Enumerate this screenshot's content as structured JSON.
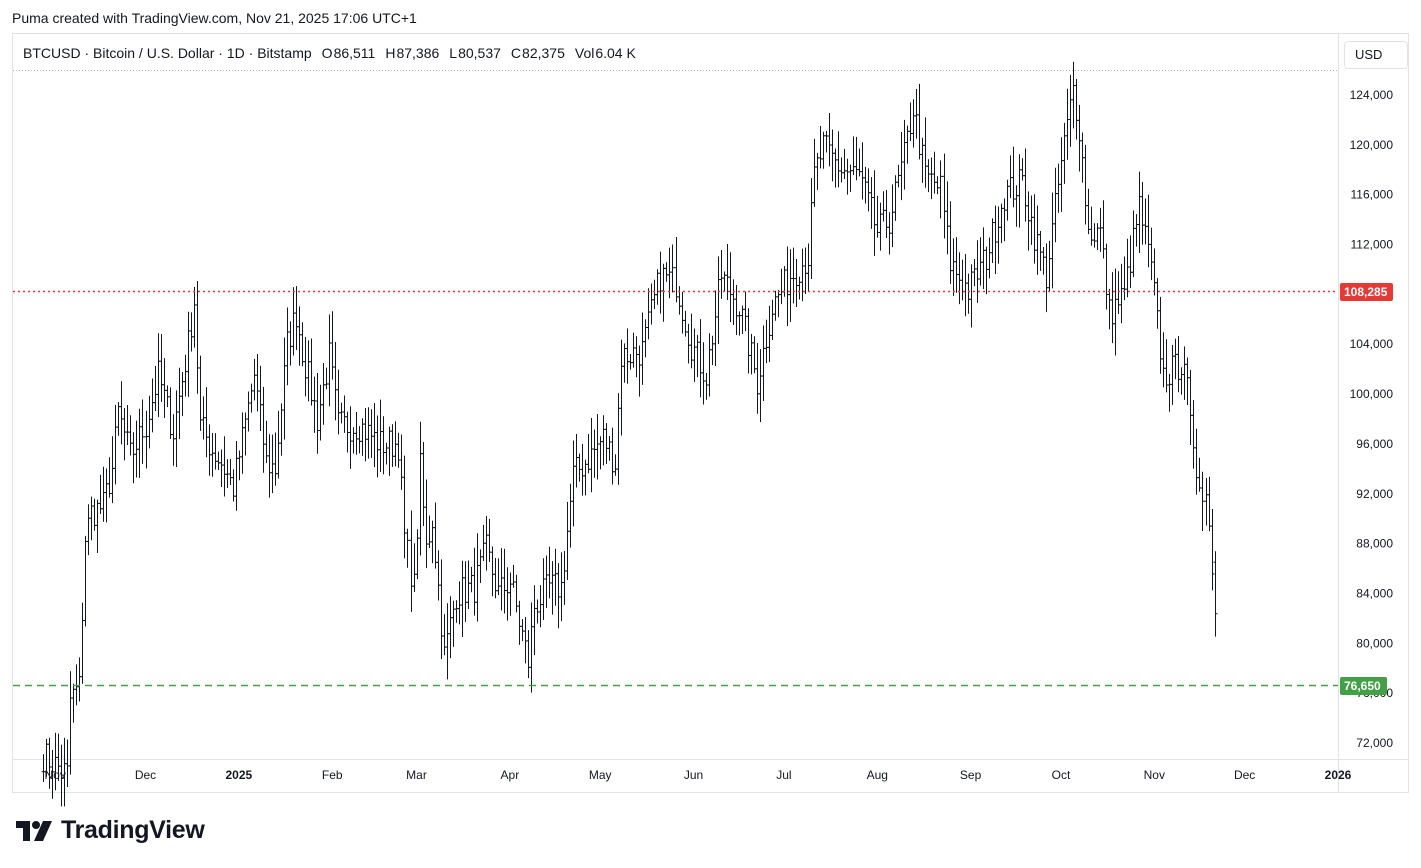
{
  "caption": "Puma created with TradingView.com, Nov 21, 2025 17:06 UTC+1",
  "legend": {
    "symbol": "BTCUSD",
    "name": "Bitcoin / U.S. Dollar",
    "interval": "1D",
    "exchange": "Bitstamp",
    "open_label": "O",
    "open": "86,511",
    "high_label": "H",
    "high": "87,386",
    "low_label": "L",
    "low": "80,537",
    "close_label": "C",
    "close": "82,375",
    "vol_label": "Vol",
    "vol": "6.04 K"
  },
  "currency_button": "USD",
  "logo_text": "TradingView",
  "colors": {
    "bars": "#131722",
    "resistance": "#e53935",
    "support": "#43a047",
    "axis_text": "#131722",
    "grid_border": "#e0e3eb"
  },
  "chart_data": {
    "type": "ohlc",
    "title": "",
    "symbol": "BTCUSD",
    "timeframe": "1D",
    "ylim": [
      70800,
      126000
    ],
    "y_ticks": [
      72000,
      76000,
      80000,
      84000,
      88000,
      92000,
      96000,
      100000,
      104000,
      108000,
      112000,
      116000,
      120000,
      124000
    ],
    "y_tick_labels": [
      "72,000",
      "76,000",
      "80,000",
      "84,000",
      "88,000",
      "92,000",
      "96,000",
      "100,000",
      "104,000",
      "108,000",
      "112,000",
      "116,000",
      "120,000",
      "124,000"
    ],
    "x_range": [
      "2024-10-18",
      "2026-01-01"
    ],
    "x_ticks": [
      {
        "date": "2024-11-01",
        "label": "Nov",
        "bold": false
      },
      {
        "date": "2024-12-01",
        "label": "Dec",
        "bold": false
      },
      {
        "date": "2025-01-01",
        "label": "2025",
        "bold": true
      },
      {
        "date": "2025-02-01",
        "label": "Feb",
        "bold": false
      },
      {
        "date": "2025-03-01",
        "label": "Mar",
        "bold": false
      },
      {
        "date": "2025-04-01",
        "label": "Apr",
        "bold": false
      },
      {
        "date": "2025-05-01",
        "label": "May",
        "bold": false
      },
      {
        "date": "2025-06-01",
        "label": "Jun",
        "bold": false
      },
      {
        "date": "2025-07-01",
        "label": "Jul",
        "bold": false
      },
      {
        "date": "2025-08-01",
        "label": "Aug",
        "bold": false
      },
      {
        "date": "2025-09-01",
        "label": "Sep",
        "bold": false
      },
      {
        "date": "2025-10-01",
        "label": "Oct",
        "bold": false
      },
      {
        "date": "2025-11-01",
        "label": "Nov",
        "bold": false
      },
      {
        "date": "2025-12-01",
        "label": "Dec",
        "bold": false
      },
      {
        "date": "2026-01-01",
        "label": "2026",
        "bold": true
      }
    ],
    "closes_approx": {
      "start_date": "2024-10-28",
      "end_date": "2025-11-21",
      "anchors": [
        [
          "2024-10-28",
          71000
        ],
        [
          "2024-11-05",
          69500
        ],
        [
          "2024-11-06",
          75500
        ],
        [
          "2024-11-09",
          76500
        ],
        [
          "2024-11-11",
          88500
        ],
        [
          "2024-11-13",
          90500
        ],
        [
          "2024-11-17",
          91000
        ],
        [
          "2024-11-20",
          94000
        ],
        [
          "2024-11-22",
          98500
        ],
        [
          "2024-11-26",
          95000
        ],
        [
          "2024-12-01",
          97500
        ],
        [
          "2024-12-05",
          101500
        ],
        [
          "2024-12-10",
          97000
        ],
        [
          "2024-12-15",
          104000
        ],
        [
          "2024-12-17",
          107500
        ],
        [
          "2024-12-19",
          97500
        ],
        [
          "2024-12-23",
          95500
        ],
        [
          "2024-12-26",
          94500
        ],
        [
          "2024-12-30",
          92500
        ],
        [
          "2025-01-06",
          101500
        ],
        [
          "2025-01-10",
          94500
        ],
        [
          "2025-01-13",
          94000
        ],
        [
          "2025-01-17",
          104000
        ],
        [
          "2025-01-20",
          106500
        ],
        [
          "2025-01-22",
          103500
        ],
        [
          "2025-01-27",
          98000
        ],
        [
          "2025-01-31",
          103000
        ],
        [
          "2025-02-03",
          97500
        ],
        [
          "2025-02-10",
          97500
        ],
        [
          "2025-02-17",
          96000
        ],
        [
          "2025-02-23",
          96000
        ],
        [
          "2025-02-25",
          88500
        ],
        [
          "2025-02-28",
          84500
        ],
        [
          "2025-03-02",
          94000
        ],
        [
          "2025-03-04",
          87500
        ],
        [
          "2025-03-06",
          90000
        ],
        [
          "2025-03-10",
          79000
        ],
        [
          "2025-03-14",
          84000
        ],
        [
          "2025-03-20",
          84500
        ],
        [
          "2025-03-24",
          87500
        ],
        [
          "2025-03-28",
          84000
        ],
        [
          "2025-04-01",
          85000
        ],
        [
          "2025-04-07",
          78500
        ],
        [
          "2025-04-09",
          83000
        ],
        [
          "2025-04-14",
          84500
        ],
        [
          "2025-04-18",
          84500
        ],
        [
          "2025-04-22",
          93500
        ],
        [
          "2025-04-26",
          94500
        ],
        [
          "2025-05-02",
          96500
        ],
        [
          "2025-05-06",
          94500
        ],
        [
          "2025-05-08",
          103000
        ],
        [
          "2025-05-15",
          103500
        ],
        [
          "2025-05-21",
          109500
        ],
        [
          "2025-05-26",
          109000
        ],
        [
          "2025-05-31",
          104000
        ],
        [
          "2025-06-05",
          101500
        ],
        [
          "2025-06-10",
          109500
        ],
        [
          "2025-06-16",
          107000
        ],
        [
          "2025-06-22",
          101000
        ],
        [
          "2025-06-27",
          107000
        ],
        [
          "2025-07-03",
          109500
        ],
        [
          "2025-07-09",
          111000
        ],
        [
          "2025-07-11",
          117500
        ],
        [
          "2025-07-14",
          119800
        ],
        [
          "2025-07-20",
          118000
        ],
        [
          "2025-07-26",
          117500
        ],
        [
          "2025-08-01",
          113000
        ],
        [
          "2025-08-05",
          114000
        ],
        [
          "2025-08-10",
          119000
        ],
        [
          "2025-08-13",
          123000
        ],
        [
          "2025-08-17",
          117500
        ],
        [
          "2025-08-22",
          116500
        ],
        [
          "2025-08-25",
          110500
        ],
        [
          "2025-08-31",
          108300
        ],
        [
          "2025-09-06",
          111000
        ],
        [
          "2025-09-12",
          116000
        ],
        [
          "2025-09-18",
          117000
        ],
        [
          "2025-09-22",
          112800
        ],
        [
          "2025-09-26",
          109500
        ],
        [
          "2025-10-01",
          118500
        ],
        [
          "2025-10-05",
          124500
        ],
        [
          "2025-10-07",
          121500
        ],
        [
          "2025-10-10",
          113000
        ],
        [
          "2025-10-14",
          113000
        ],
        [
          "2025-10-17",
          106500
        ],
        [
          "2025-10-22",
          108000
        ],
        [
          "2025-10-27",
          115000
        ],
        [
          "2025-10-31",
          110000
        ],
        [
          "2025-11-04",
          101500
        ],
        [
          "2025-11-08",
          102000
        ],
        [
          "2025-11-11",
          103000
        ],
        [
          "2025-11-14",
          94500
        ],
        [
          "2025-11-18",
          92000
        ],
        [
          "2025-11-20",
          86500
        ],
        [
          "2025-11-21",
          82375
        ]
      ]
    },
    "last_bar": {
      "date": "2025-11-21",
      "open": 86511,
      "high": 87386,
      "low": 80537,
      "close": 82375
    },
    "horizontal_lines": [
      {
        "value": 108285,
        "label": "108,285",
        "style": "dotted",
        "color": "#e53935"
      },
      {
        "value": 76650,
        "label": "76,650",
        "style": "dashed",
        "color": "#43a047"
      }
    ],
    "grid": false,
    "legend_position": "top-left"
  }
}
